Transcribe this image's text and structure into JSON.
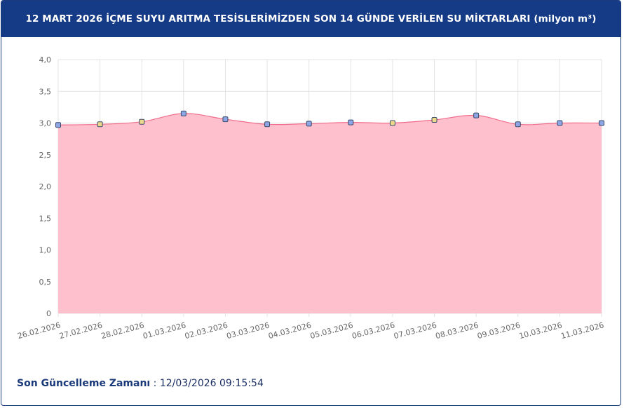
{
  "header": {
    "title": "12 MART 2026 İÇME SUYU ARITMA TESİSLERİMİZDEN SON 14 GÜNDE VERİLEN SU MİKTARLARI (milyon m³)"
  },
  "footer": {
    "label": "Son Güncelleme Zamanı",
    "separator": " : ",
    "value": "12/03/2026 09:15:54"
  },
  "colors": {
    "header_bg": "#163b86",
    "area_fill": "#ffc0cd",
    "line": "#f06d8a",
    "grid": "#e3e3e3",
    "point_blue": "#8fa6e6",
    "point_yellow": "#ecd98c"
  },
  "chart_data": {
    "type": "area",
    "title": "12 MART 2026 İÇME SUYU ARITMA TESİSLERİMİZDEN SON 14 GÜNDE VERİLEN SU MİKTARLARI (milyon m³)",
    "categories": [
      "26.02.2026",
      "27.02.2026",
      "28.02.2026",
      "01.03.2026",
      "02.03.2026",
      "03.03.2026",
      "04.03.2026",
      "05.03.2026",
      "06.03.2026",
      "07.03.2026",
      "08.03.2026",
      "09.03.2026",
      "10.03.2026",
      "11.03.2026"
    ],
    "values": [
      2.97,
      2.98,
      3.02,
      3.15,
      3.06,
      2.98,
      2.99,
      3.01,
      3.0,
      3.05,
      3.12,
      2.98,
      3.0,
      3.0
    ],
    "point_colors": [
      "blue",
      "yellow",
      "yellow",
      "blue",
      "blue",
      "blue",
      "blue",
      "blue",
      "yellow",
      "yellow",
      "blue",
      "blue",
      "blue",
      "blue"
    ],
    "ylim": [
      0,
      4
    ],
    "yticks": [
      "0",
      "0,5",
      "1,0",
      "1,5",
      "2,0",
      "2,5",
      "3,0",
      "3,5",
      "4,0"
    ],
    "grid": true,
    "legend": "none"
  }
}
